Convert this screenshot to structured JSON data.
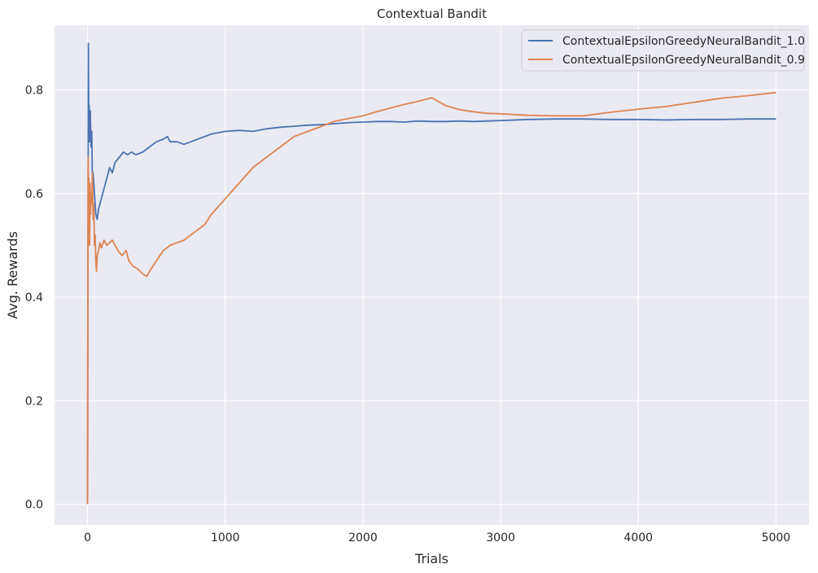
{
  "chart_data": {
    "type": "line",
    "title": "Contextual Bandit",
    "xlabel": "Trials",
    "ylabel": "Avg. Rewards",
    "xlim": [
      -240,
      5240
    ],
    "ylim": [
      -0.04,
      0.925
    ],
    "xticks": [
      0,
      1000,
      2000,
      3000,
      4000,
      5000
    ],
    "yticks": [
      0.0,
      0.2,
      0.4,
      0.6,
      0.8
    ],
    "xtick_labels": [
      "0",
      "1000",
      "2000",
      "3000",
      "4000",
      "5000"
    ],
    "ytick_labels": [
      "0.0",
      "0.2",
      "0.4",
      "0.6",
      "0.8"
    ],
    "grid": true,
    "background": "#eaeaf2",
    "legend_position": "top-right",
    "series": [
      {
        "name": "ContextualEpsilonGreedyNeuralBandit_1.0",
        "color": "#4c72b0",
        "x": [
          0,
          3,
          6,
          9,
          12,
          15,
          20,
          25,
          30,
          35,
          40,
          50,
          60,
          70,
          80,
          90,
          100,
          120,
          140,
          160,
          180,
          200,
          230,
          260,
          290,
          320,
          350,
          400,
          450,
          500,
          550,
          580,
          600,
          650,
          700,
          750,
          800,
          900,
          1000,
          1100,
          1200,
          1300,
          1400,
          1500,
          1600,
          1700,
          1800,
          1900,
          2000,
          2100,
          2200,
          2300,
          2400,
          2500,
          2600,
          2700,
          2800,
          2900,
          3000,
          3200,
          3400,
          3600,
          3800,
          4000,
          4200,
          4400,
          4600,
          4800,
          5000
        ],
        "y": [
          0.0,
          0.5,
          0.89,
          0.74,
          0.77,
          0.7,
          0.76,
          0.69,
          0.72,
          0.63,
          0.64,
          0.6,
          0.56,
          0.55,
          0.57,
          0.58,
          0.59,
          0.61,
          0.63,
          0.65,
          0.64,
          0.66,
          0.67,
          0.68,
          0.675,
          0.68,
          0.675,
          0.68,
          0.69,
          0.7,
          0.705,
          0.71,
          0.7,
          0.7,
          0.695,
          0.7,
          0.705,
          0.715,
          0.72,
          0.722,
          0.72,
          0.725,
          0.728,
          0.73,
          0.732,
          0.733,
          0.735,
          0.737,
          0.738,
          0.739,
          0.739,
          0.738,
          0.74,
          0.739,
          0.739,
          0.74,
          0.739,
          0.74,
          0.741,
          0.743,
          0.744,
          0.744,
          0.743,
          0.743,
          0.742,
          0.743,
          0.743,
          0.744,
          0.744
        ]
      },
      {
        "name": "ContextualEpsilonGreedyNeuralBandit_0.9",
        "color": "#dd8452",
        "x": [
          0,
          2,
          4,
          6,
          8,
          10,
          12,
          15,
          18,
          22,
          26,
          30,
          35,
          40,
          45,
          50,
          55,
          60,
          65,
          70,
          80,
          90,
          100,
          120,
          140,
          160,
          180,
          200,
          220,
          250,
          280,
          300,
          330,
          360,
          400,
          430,
          450,
          500,
          550,
          600,
          650,
          700,
          750,
          800,
          850,
          900,
          1000,
          1100,
          1200,
          1300,
          1400,
          1500,
          1600,
          1700,
          1800,
          1900,
          2000,
          2100,
          2200,
          2300,
          2400,
          2500,
          2600,
          2700,
          2800,
          2900,
          3000,
          3200,
          3400,
          3600,
          3800,
          4000,
          4200,
          4400,
          4600,
          4800,
          5000
        ],
        "y": [
          0.0,
          0.4,
          0.67,
          0.6,
          0.5,
          0.63,
          0.55,
          0.5,
          0.62,
          0.56,
          0.6,
          0.58,
          0.64,
          0.55,
          0.58,
          0.5,
          0.52,
          0.47,
          0.45,
          0.48,
          0.49,
          0.505,
          0.495,
          0.51,
          0.5,
          0.505,
          0.51,
          0.5,
          0.49,
          0.48,
          0.49,
          0.47,
          0.46,
          0.455,
          0.445,
          0.44,
          0.45,
          0.47,
          0.49,
          0.5,
          0.505,
          0.51,
          0.52,
          0.53,
          0.54,
          0.56,
          0.59,
          0.62,
          0.65,
          0.67,
          0.69,
          0.71,
          0.72,
          0.73,
          0.74,
          0.745,
          0.75,
          0.758,
          0.765,
          0.772,
          0.778,
          0.785,
          0.77,
          0.762,
          0.758,
          0.755,
          0.754,
          0.751,
          0.75,
          0.75,
          0.757,
          0.763,
          0.768,
          0.776,
          0.784,
          0.789,
          0.795
        ]
      }
    ]
  }
}
